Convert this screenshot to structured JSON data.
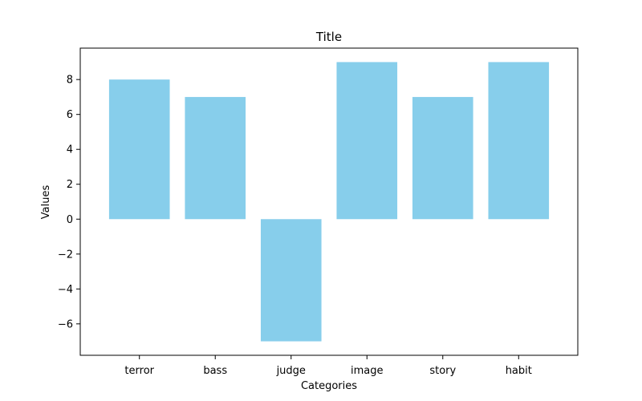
{
  "chart_data": {
    "type": "bar",
    "title": "Title",
    "xlabel": "Categories",
    "ylabel": "Values",
    "categories": [
      "terror",
      "bass",
      "judge",
      "image",
      "story",
      "habit"
    ],
    "values": [
      8,
      7,
      -7,
      9,
      7,
      9
    ],
    "ylim": [
      -7.8,
      9.8
    ],
    "yticks": [
      -6,
      -4,
      -2,
      0,
      2,
      4,
      6,
      8
    ],
    "ytick_labels": [
      "−6",
      "−4",
      "−2",
      "0",
      "2",
      "4",
      "6",
      "8"
    ],
    "bar_color": "#87ceeb",
    "grid": false,
    "legend": "none"
  }
}
